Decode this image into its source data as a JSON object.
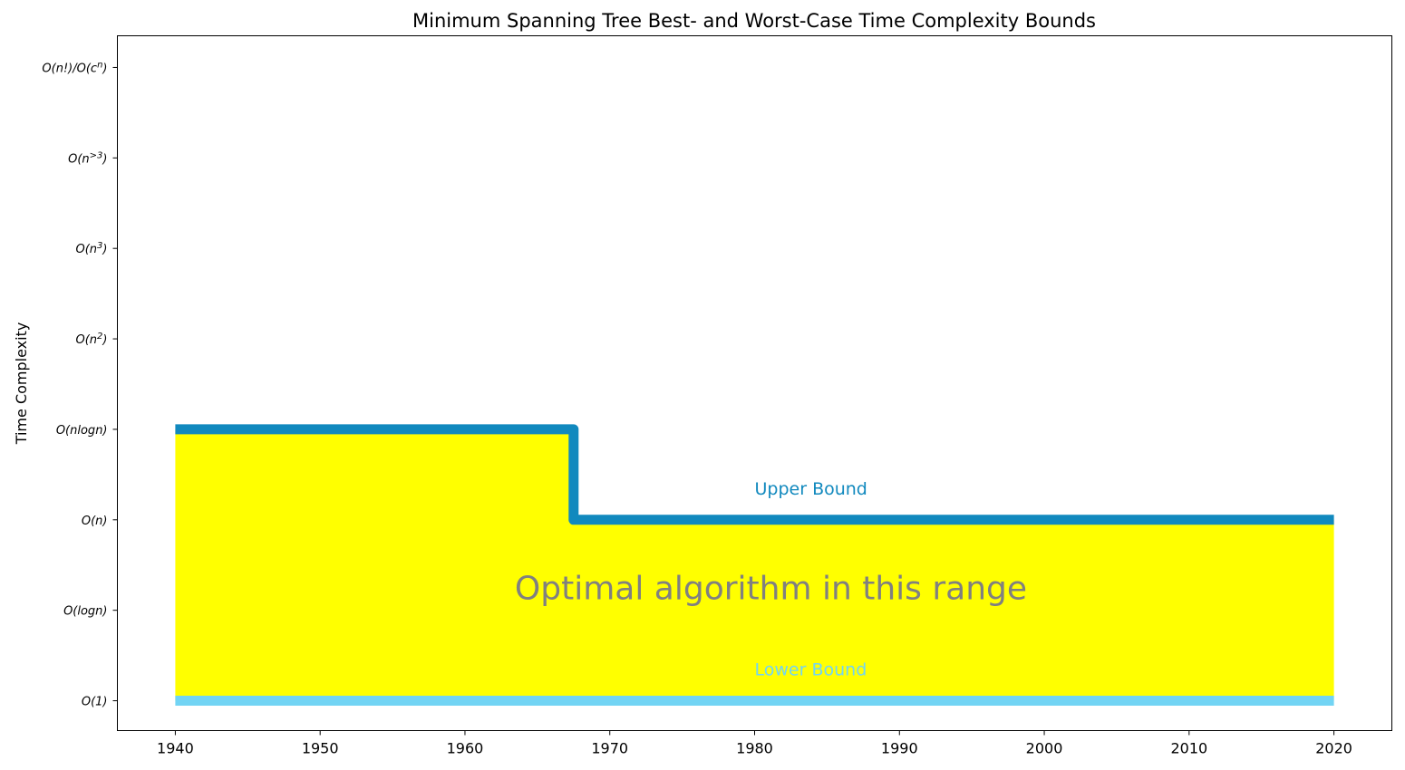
{
  "chart_data": {
    "type": "line",
    "title": "Minimum Spanning Tree Best- and Worst-Case Time Complexity Bounds",
    "xlabel": "",
    "ylabel": "Time Complexity",
    "xlim": [
      1936,
      2024
    ],
    "ylim": [
      -0.33,
      7.35
    ],
    "x_ticks": [
      1940,
      1950,
      1960,
      1970,
      1980,
      1990,
      2000,
      2010,
      2020
    ],
    "y_ticks": [
      {
        "value": 0,
        "label": "O(1)"
      },
      {
        "value": 1,
        "label": "O(logn)"
      },
      {
        "value": 2,
        "label": "O(n)"
      },
      {
        "value": 3,
        "label": "O(nlogn)"
      },
      {
        "value": 4,
        "label": "O(n^2)"
      },
      {
        "value": 5,
        "label": "O(n^3)"
      },
      {
        "value": 6,
        "label": "O(n^>3)"
      },
      {
        "value": 7,
        "label": "O(n!)/O(c^n)"
      }
    ],
    "series": [
      {
        "name": "Upper Bound",
        "color": "#1189BE",
        "step": "post",
        "x": [
          1940,
          1967.5,
          2020
        ],
        "y": [
          3,
          2,
          2
        ],
        "label_pos": {
          "x": 1980,
          "y": 2.28
        }
      },
      {
        "name": "Lower Bound",
        "color": "#72D4F4",
        "step": "post",
        "x": [
          1940,
          2020
        ],
        "y": [
          0,
          0
        ],
        "label_pos": {
          "x": 1980,
          "y": 0.28
        }
      }
    ],
    "fill": {
      "color": "#FFFF00",
      "between": [
        "Lower Bound",
        "Upper Bound"
      ],
      "x_range": [
        1940,
        2020
      ]
    },
    "annotation": {
      "text": "Optimal algorithm in this range",
      "x": 1980,
      "y": 1.12,
      "color": "#808080"
    },
    "grid": false,
    "legend": "none"
  }
}
